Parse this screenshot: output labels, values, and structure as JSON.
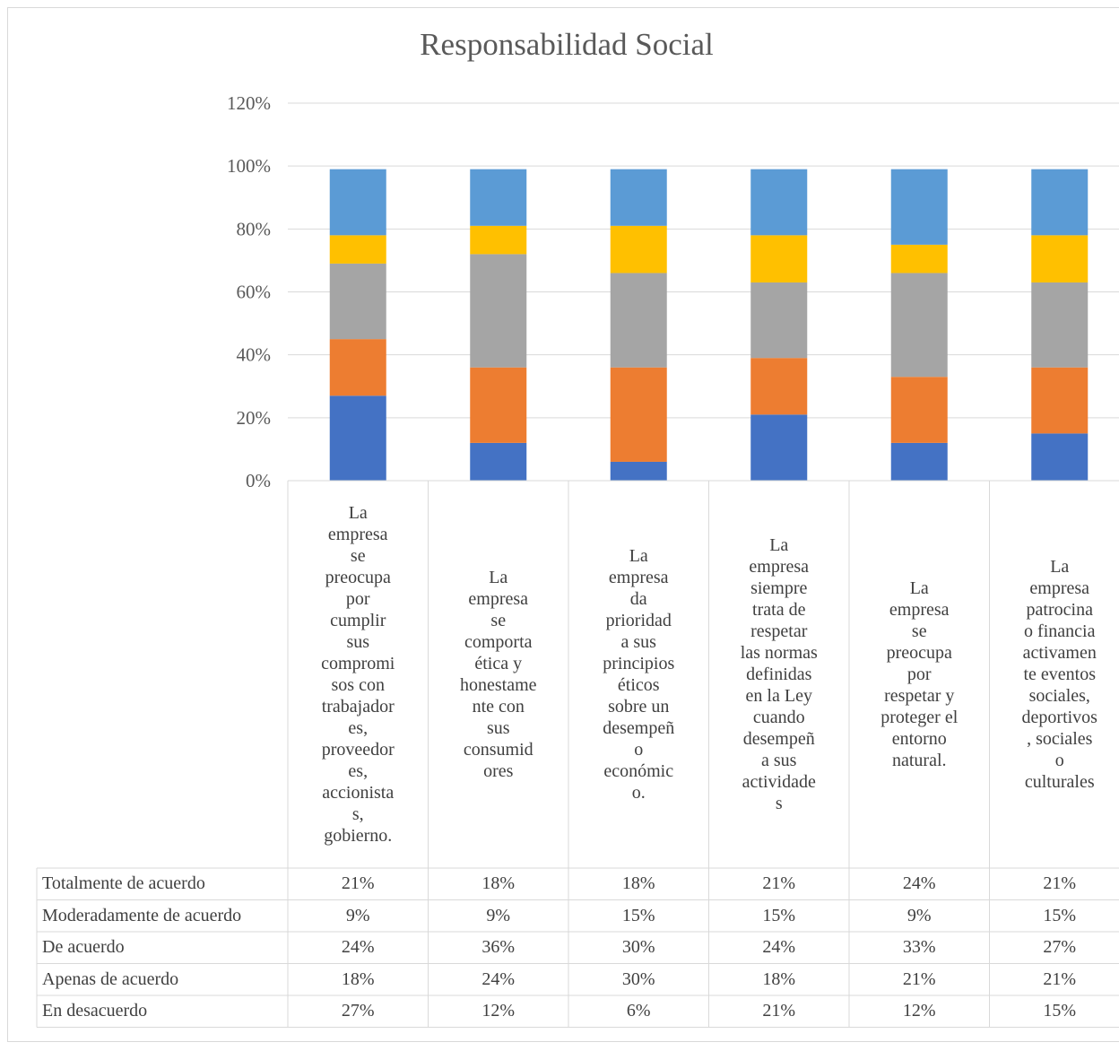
{
  "chart_data": {
    "type": "bar",
    "stacked": true,
    "title": "Responsabilidad Social",
    "ylim": [
      0,
      1.2
    ],
    "yticks": [
      "0%",
      "20%",
      "40%",
      "60%",
      "80%",
      "100%",
      "120%"
    ],
    "grid": true,
    "legend": "data-table",
    "categories": [
      "La empresa se preocupa por cumplir sus compromisos con trabajadores, proveedores, accionistas, gobierno.",
      "La empresa se comporta ética y honestamente con sus consumidores",
      "La empresa da prioridad a sus principios éticos sobre un desempeño económico.",
      "La empresa siempre trata de respetar las normas definidas en la Ley cuando desempeña sus actividades",
      "La empresa se preocupa por respetar y proteger el entorno natural.",
      "La empresa patrocina o financia activamente eventos sociales, deportivos, sociales o culturales"
    ],
    "category_lines": [
      "La\nempresa\nse\npreocupa\npor\ncumplir\nsus\ncompromi\nsos con\ntrabajador\nes,\nproveedor\nes,\naccionista\ns,\ngobierno.",
      "La\nempresa\nse\ncomporta\nética y\nhonestame\nnte con\nsus\nconsumid\nores",
      "La\nempresa\nda\nprioridad\na sus\nprincipios\néticos\nsobre un\ndesempeñ\no\neconómic\no.",
      "La\nempresa\nsiempre\ntrata de\nrespetar\nlas normas\ndefinidas\nen la Ley\ncuando\ndesempeñ\na sus\nactividade\ns",
      "La\nempresa\nse\npreocupa\npor\nrespetar y\nproteger el\nentorno\nnatural.",
      "La\nempresa\npatrocina\no financia\nactivamen\nte eventos\nsociales,\ndeportivos\n, sociales\no\nculturales"
    ],
    "series": [
      {
        "name": "Totalmente de acuerdo",
        "color": "#5b9bd5",
        "values": [
          0.21,
          0.18,
          0.18,
          0.21,
          0.24,
          0.21
        ],
        "labels": [
          "21%",
          "18%",
          "18%",
          "21%",
          "24%",
          "21%"
        ]
      },
      {
        "name": "Moderadamente de acuerdo",
        "color": "#ffc000",
        "values": [
          0.09,
          0.09,
          0.15,
          0.15,
          0.09,
          0.15
        ],
        "labels": [
          "9%",
          "9%",
          "15%",
          "15%",
          "9%",
          "15%"
        ]
      },
      {
        "name": "De acuerdo",
        "color": "#a5a5a5",
        "values": [
          0.24,
          0.36,
          0.3,
          0.24,
          0.33,
          0.27
        ],
        "labels": [
          "24%",
          "36%",
          "30%",
          "24%",
          "33%",
          "27%"
        ]
      },
      {
        "name": "Apenas de acuerdo",
        "color": "#ed7d31",
        "values": [
          0.18,
          0.24,
          0.3,
          0.18,
          0.21,
          0.21
        ],
        "labels": [
          "18%",
          "24%",
          "30%",
          "18%",
          "21%",
          "21%"
        ]
      },
      {
        "name": "En desacuerdo",
        "color": "#4472c4",
        "values": [
          0.27,
          0.12,
          0.06,
          0.21,
          0.12,
          0.15
        ],
        "labels": [
          "27%",
          "12%",
          "6%",
          "21%",
          "12%",
          "15%"
        ]
      }
    ],
    "stack_order_bottom_to_top": [
      "En desacuerdo",
      "Apenas de acuerdo",
      "De acuerdo",
      "Moderadamente de acuerdo",
      "Totalmente de acuerdo"
    ]
  }
}
